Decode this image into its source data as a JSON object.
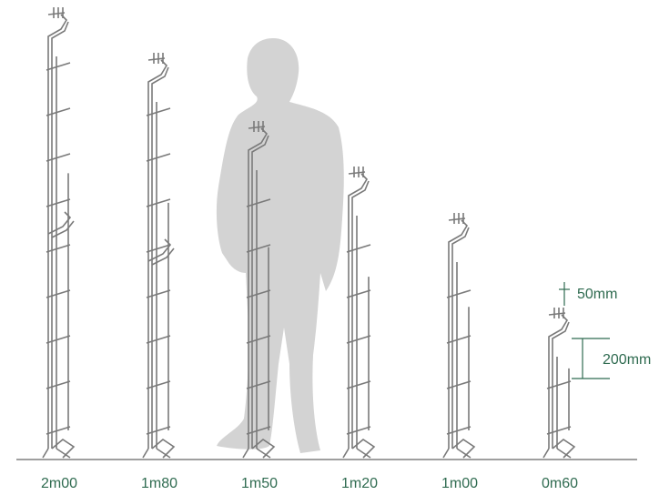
{
  "panels": [
    {
      "label": "2m00"
    },
    {
      "label": "1m80"
    },
    {
      "label": "1m50"
    },
    {
      "label": "1m20"
    },
    {
      "label": "1m00"
    },
    {
      "label": "0m60"
    }
  ],
  "dimensions": {
    "top_gap": "50mm",
    "mesh_height": "200mm"
  }
}
